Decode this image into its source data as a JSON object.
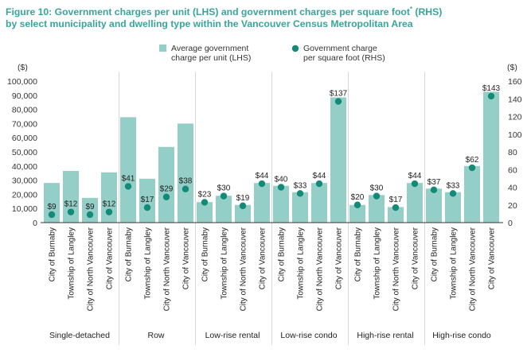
{
  "title_line1": "Figure 10: Government charges per unit (LHS) and government charges per square foot",
  "title_sup": "*",
  "title_line1_end": " (RHS)",
  "title_line2": "by select municipality and dwelling type within the Vancouver Census Metropolitan Area",
  "colors": {
    "bar": "#93cfc7",
    "dot": "#138a77",
    "title": "#3aa49a",
    "axis": "#333333",
    "divider": "#d9d9d9"
  },
  "chart_data": {
    "type": "bar",
    "legend_position": "top-center",
    "legend": [
      {
        "key": "unit",
        "marker": "square",
        "label_lines": [
          "Average government",
          "charge per unit (LHS)"
        ]
      },
      {
        "key": "sqft",
        "marker": "circle",
        "label_lines": [
          "Government charge",
          "per square foot (RHS)"
        ]
      }
    ],
    "left_axis": {
      "unit_label": "($)",
      "range": [
        0,
        100000
      ],
      "ticks": [
        0,
        10000,
        20000,
        30000,
        40000,
        50000,
        60000,
        70000,
        80000,
        90000,
        100000
      ],
      "tick_labels": [
        "0",
        "10,000",
        "20,000",
        "30,000",
        "40,000",
        "50,000",
        "60,000",
        "70,000",
        "80,000",
        "90,000",
        "100,000"
      ]
    },
    "right_axis": {
      "unit_label": "($)",
      "range": [
        0,
        160
      ],
      "ticks": [
        0,
        20,
        40,
        60,
        80,
        100,
        120,
        140,
        160
      ],
      "tick_labels": [
        "0",
        "20",
        "40",
        "60",
        "80",
        "100",
        "120",
        "140",
        "160"
      ]
    },
    "grid": false,
    "groups": [
      {
        "name": "Single-detached",
        "items": [
          {
            "city": "City of Burnaby",
            "per_unit": 28000,
            "per_sqft": 9,
            "label": "$9"
          },
          {
            "city": "Township of Langley",
            "per_unit": 36500,
            "per_sqft": 12,
            "label": "$12"
          },
          {
            "city": "City of North Vancouver",
            "per_unit": 17500,
            "per_sqft": 9,
            "label": "$9"
          },
          {
            "city": "City of Vancouver",
            "per_unit": 35500,
            "per_sqft": 12,
            "label": "$12"
          }
        ]
      },
      {
        "name": "Row",
        "items": [
          {
            "city": "City of Burnaby",
            "per_unit": 74500,
            "per_sqft": 41,
            "label": "$41"
          },
          {
            "city": "Township of Langley",
            "per_unit": 31000,
            "per_sqft": 17,
            "label": "$17"
          },
          {
            "city": "City of North Vancouver",
            "per_unit": 53500,
            "per_sqft": 29,
            "label": "$29"
          },
          {
            "city": "City of Vancouver",
            "per_unit": 70000,
            "per_sqft": 38,
            "label": "$38"
          }
        ]
      },
      {
        "name": "Low-rise rental",
        "items": [
          {
            "city": "City of Burnaby",
            "per_unit": 14500,
            "per_sqft": 23,
            "label": "$23"
          },
          {
            "city": "Township of Langley",
            "per_unit": 19000,
            "per_sqft": 30,
            "label": "$30"
          },
          {
            "city": "City of North Vancouver",
            "per_unit": 12500,
            "per_sqft": 19,
            "label": "$19"
          },
          {
            "city": "City of Vancouver",
            "per_unit": 28000,
            "per_sqft": 44,
            "label": "$44"
          }
        ]
      },
      {
        "name": "Low-rise condo",
        "items": [
          {
            "city": "City of Burnaby",
            "per_unit": 26000,
            "per_sqft": 40,
            "label": "$40"
          },
          {
            "city": "Township of Langley",
            "per_unit": 21500,
            "per_sqft": 33,
            "label": "$33"
          },
          {
            "city": "City of North Vancouver",
            "per_unit": 28000,
            "per_sqft": 44,
            "label": "$44"
          },
          {
            "city": "City of Vancouver",
            "per_unit": 88500,
            "per_sqft": 137,
            "label": "$137"
          }
        ]
      },
      {
        "name": "High-rise rental",
        "items": [
          {
            "city": "City of Burnaby",
            "per_unit": 12500,
            "per_sqft": 20,
            "label": "$20"
          },
          {
            "city": "Township of Langley",
            "per_unit": 19500,
            "per_sqft": 30,
            "label": "$30"
          },
          {
            "city": "City of North Vancouver",
            "per_unit": 11000,
            "per_sqft": 17,
            "label": "$17"
          },
          {
            "city": "City of Vancouver",
            "per_unit": 28000,
            "per_sqft": 44,
            "label": "$44"
          }
        ]
      },
      {
        "name": "High-rise condo",
        "items": [
          {
            "city": "City of Burnaby",
            "per_unit": 24000,
            "per_sqft": 37,
            "label": "$37"
          },
          {
            "city": "Township of Langley",
            "per_unit": 21500,
            "per_sqft": 33,
            "label": "$33"
          },
          {
            "city": "City of North Vancouver",
            "per_unit": 40000,
            "per_sqft": 62,
            "label": "$62"
          },
          {
            "city": "City of Vancouver",
            "per_unit": 92500,
            "per_sqft": 143,
            "label": "$143"
          }
        ]
      }
    ]
  }
}
